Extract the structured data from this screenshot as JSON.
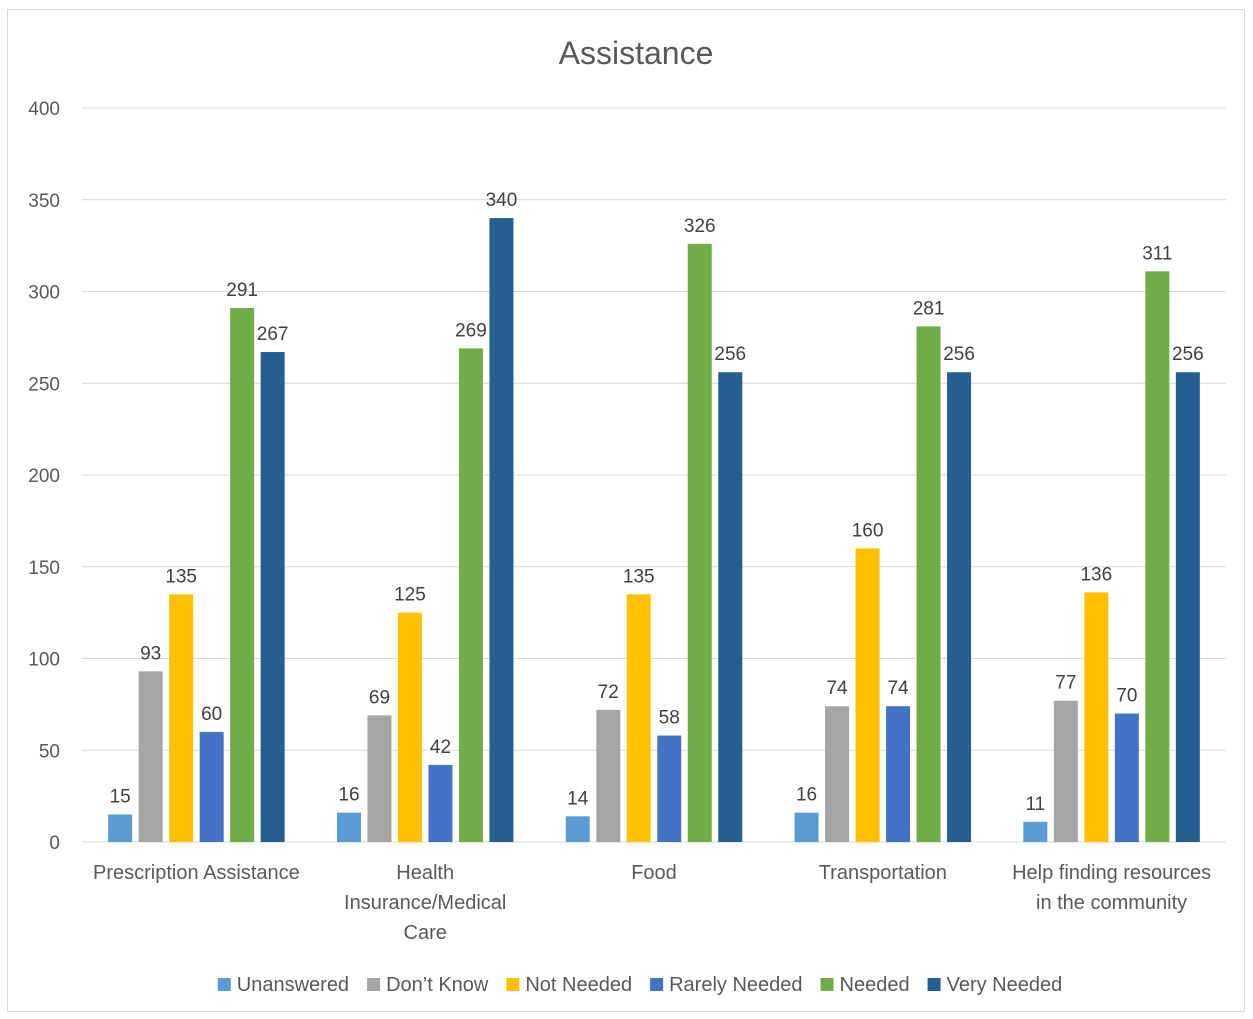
{
  "chart_data": {
    "type": "bar",
    "title": "Assistance",
    "categories": [
      [
        "Prescription Assistance"
      ],
      [
        "Health",
        "Insurance/Medical",
        "Care"
      ],
      [
        "Food"
      ],
      [
        "Transportation"
      ],
      [
        "Help finding resources",
        "in the community"
      ]
    ],
    "series": [
      {
        "name": "Unanswered",
        "color": "#5b9bd5",
        "values": [
          15,
          16,
          14,
          16,
          11
        ]
      },
      {
        "name": "Don’t Know",
        "color": "#a5a5a5",
        "values": [
          93,
          69,
          72,
          74,
          77
        ]
      },
      {
        "name": "Not Needed",
        "color": "#ffc000",
        "values": [
          135,
          125,
          135,
          160,
          136
        ]
      },
      {
        "name": "Rarely Needed",
        "color": "#4472c4",
        "values": [
          60,
          42,
          58,
          74,
          70
        ]
      },
      {
        "name": "Needed",
        "color": "#70ad47",
        "values": [
          291,
          269,
          326,
          281,
          311
        ]
      },
      {
        "name": "Very Needed",
        "color": "#255e91",
        "values": [
          267,
          340,
          256,
          256,
          256
        ]
      }
    ],
    "ylim": [
      0,
      400
    ],
    "yticks": [
      0,
      50,
      100,
      150,
      200,
      250,
      300,
      350,
      400
    ],
    "grid": true,
    "legend": "bottom",
    "data_labels": true
  }
}
